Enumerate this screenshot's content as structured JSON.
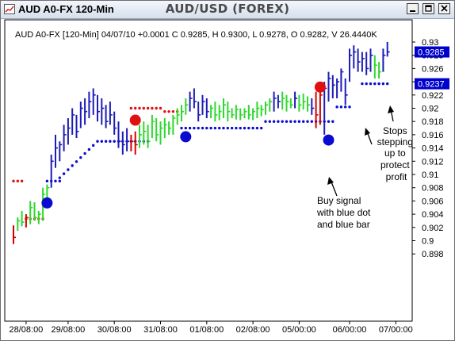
{
  "window": {
    "title": "AUD A0-FX 120-Min",
    "chart_title": "AUD/USD (FOREX)",
    "buttons": [
      "minimize-icon",
      "maximize-icon",
      "close-icon"
    ]
  },
  "info_line": "AUD A0-FX [120-Min] 04/07/10  +0.0001  C 0.9285, H 0.9300, L 0.9278, O 0.9282, V 26.4440K",
  "price_tags": [
    {
      "label": "0.9285",
      "value": 0.9285,
      "color": "#0000cc"
    },
    {
      "label": "0.9237",
      "value": 0.9237,
      "color": "#0000cc"
    }
  ],
  "annotations": {
    "buy_signal": "Buy signal\nwith blue dot\nand blue bar",
    "stops": "Stops\nstepping\nup to\nprotect\nprofit"
  },
  "colors": {
    "up": "#2dd82d",
    "down": "#1c1cb8",
    "sell": "#d40000",
    "stop_blue": "#0a0ad0",
    "stop_red": "#e01010"
  },
  "chart_data": {
    "type": "ohlc-bar",
    "title": "AUD/USD (FOREX)",
    "ylim": [
      0.8975,
      0.9325
    ],
    "y_ticks": [
      0.898,
      0.9,
      0.902,
      0.904,
      0.906,
      0.908,
      0.91,
      0.912,
      0.914,
      0.916,
      0.918,
      0.92,
      0.922,
      0.924,
      0.926,
      0.928,
      0.93
    ],
    "y_tick_labels": [
      "0.898",
      "0.9",
      "0.902",
      "0.904",
      "0.906",
      "0.908",
      "0.91",
      "0.912",
      "0.914",
      "0.916",
      "0.918",
      "0.92",
      "0.922",
      "0.924",
      "0.926",
      "0.928",
      "0.93"
    ],
    "x_labels": [
      {
        "bar": 3,
        "label": "28/08:00"
      },
      {
        "bar": 13,
        "label": "29/08:00"
      },
      {
        "bar": 24,
        "label": "30/08:00"
      },
      {
        "bar": 35,
        "label": "31/08:00"
      },
      {
        "bar": 46,
        "label": "01/08:00"
      },
      {
        "bar": 57,
        "label": "02/08:00"
      },
      {
        "bar": 68,
        "label": "05/00:00"
      },
      {
        "bar": 80,
        "label": "06/00:00"
      },
      {
        "bar": 91,
        "label": "07/00:00"
      }
    ],
    "bars": [
      {
        "h": 0.9023,
        "l": 0.8995,
        "c": 0.9005,
        "col": "red"
      },
      {
        "h": 0.9035,
        "l": 0.9015,
        "c": 0.903,
        "col": "green"
      },
      {
        "h": 0.9045,
        "l": 0.9022,
        "c": 0.9028,
        "col": "green"
      },
      {
        "h": 0.904,
        "l": 0.902,
        "c": 0.9035,
        "col": "red"
      },
      {
        "h": 0.906,
        "l": 0.9025,
        "c": 0.905,
        "col": "green"
      },
      {
        "h": 0.9058,
        "l": 0.903,
        "c": 0.9035,
        "col": "green"
      },
      {
        "h": 0.9045,
        "l": 0.9025,
        "c": 0.904,
        "col": "green"
      },
      {
        "h": 0.908,
        "l": 0.903,
        "c": 0.907,
        "col": "green"
      },
      {
        "h": 0.9085,
        "l": 0.9055,
        "c": 0.908,
        "col": "green"
      },
      {
        "h": 0.913,
        "l": 0.908,
        "c": 0.912,
        "col": "blue"
      },
      {
        "h": 0.916,
        "l": 0.911,
        "c": 0.914,
        "col": "blue"
      },
      {
        "h": 0.915,
        "l": 0.912,
        "c": 0.9145,
        "col": "blue"
      },
      {
        "h": 0.9175,
        "l": 0.9135,
        "c": 0.916,
        "col": "blue"
      },
      {
        "h": 0.9185,
        "l": 0.9145,
        "c": 0.917,
        "col": "blue"
      },
      {
        "h": 0.92,
        "l": 0.916,
        "c": 0.919,
        "col": "blue"
      },
      {
        "h": 0.919,
        "l": 0.9155,
        "c": 0.9165,
        "col": "blue"
      },
      {
        "h": 0.921,
        "l": 0.917,
        "c": 0.92,
        "col": "blue"
      },
      {
        "h": 0.9215,
        "l": 0.9175,
        "c": 0.9195,
        "col": "blue"
      },
      {
        "h": 0.9225,
        "l": 0.9185,
        "c": 0.921,
        "col": "blue"
      },
      {
        "h": 0.923,
        "l": 0.919,
        "c": 0.922,
        "col": "blue"
      },
      {
        "h": 0.922,
        "l": 0.918,
        "c": 0.9195,
        "col": "blue"
      },
      {
        "h": 0.9215,
        "l": 0.9175,
        "c": 0.92,
        "col": "blue"
      },
      {
        "h": 0.9205,
        "l": 0.917,
        "c": 0.918,
        "col": "blue"
      },
      {
        "h": 0.921,
        "l": 0.9175,
        "c": 0.919,
        "col": "blue"
      },
      {
        "h": 0.9195,
        "l": 0.916,
        "c": 0.917,
        "col": "blue"
      },
      {
        "h": 0.918,
        "l": 0.914,
        "c": 0.915,
        "col": "blue"
      },
      {
        "h": 0.9165,
        "l": 0.913,
        "c": 0.9145,
        "col": "blue"
      },
      {
        "h": 0.917,
        "l": 0.9135,
        "c": 0.915,
        "col": "blue"
      },
      {
        "h": 0.916,
        "l": 0.9135,
        "c": 0.915,
        "col": "red"
      },
      {
        "h": 0.9165,
        "l": 0.913,
        "c": 0.9145,
        "col": "red"
      },
      {
        "h": 0.9175,
        "l": 0.914,
        "c": 0.916,
        "col": "green"
      },
      {
        "h": 0.918,
        "l": 0.9145,
        "c": 0.9165,
        "col": "green"
      },
      {
        "h": 0.9175,
        "l": 0.914,
        "c": 0.915,
        "col": "green"
      },
      {
        "h": 0.919,
        "l": 0.9155,
        "c": 0.918,
        "col": "green"
      },
      {
        "h": 0.9185,
        "l": 0.915,
        "c": 0.916,
        "col": "green"
      },
      {
        "h": 0.918,
        "l": 0.9145,
        "c": 0.917,
        "col": "green"
      },
      {
        "h": 0.9185,
        "l": 0.9155,
        "c": 0.9175,
        "col": "green"
      },
      {
        "h": 0.918,
        "l": 0.916,
        "c": 0.917,
        "col": "green"
      },
      {
        "h": 0.919,
        "l": 0.916,
        "c": 0.9185,
        "col": "green"
      },
      {
        "h": 0.92,
        "l": 0.9175,
        "c": 0.919,
        "col": "green"
      },
      {
        "h": 0.9205,
        "l": 0.918,
        "c": 0.9195,
        "col": "green"
      },
      {
        "h": 0.9215,
        "l": 0.919,
        "c": 0.9205,
        "col": "green"
      },
      {
        "h": 0.9225,
        "l": 0.9195,
        "c": 0.9215,
        "col": "blue"
      },
      {
        "h": 0.923,
        "l": 0.92,
        "c": 0.921,
        "col": "blue"
      },
      {
        "h": 0.921,
        "l": 0.918,
        "c": 0.919,
        "col": "blue"
      },
      {
        "h": 0.922,
        "l": 0.919,
        "c": 0.921,
        "col": "blue"
      },
      {
        "h": 0.9215,
        "l": 0.9185,
        "c": 0.9195,
        "col": "blue"
      },
      {
        "h": 0.9205,
        "l": 0.9185,
        "c": 0.92,
        "col": "green"
      },
      {
        "h": 0.921,
        "l": 0.918,
        "c": 0.919,
        "col": "green"
      },
      {
        "h": 0.9205,
        "l": 0.9182,
        "c": 0.9195,
        "col": "green"
      },
      {
        "h": 0.9215,
        "l": 0.9185,
        "c": 0.9205,
        "col": "green"
      },
      {
        "h": 0.921,
        "l": 0.918,
        "c": 0.9195,
        "col": "green"
      },
      {
        "h": 0.92,
        "l": 0.9185,
        "c": 0.919,
        "col": "green"
      },
      {
        "h": 0.9205,
        "l": 0.9183,
        "c": 0.9198,
        "col": "green"
      },
      {
        "h": 0.92,
        "l": 0.9182,
        "c": 0.919,
        "col": "green"
      },
      {
        "h": 0.92,
        "l": 0.9185,
        "c": 0.9195,
        "col": "green"
      },
      {
        "h": 0.9205,
        "l": 0.9183,
        "c": 0.919,
        "col": "green"
      },
      {
        "h": 0.92,
        "l": 0.9182,
        "c": 0.9195,
        "col": "green"
      },
      {
        "h": 0.921,
        "l": 0.9185,
        "c": 0.92,
        "col": "green"
      },
      {
        "h": 0.9205,
        "l": 0.9188,
        "c": 0.9198,
        "col": "green"
      },
      {
        "h": 0.921,
        "l": 0.919,
        "c": 0.9205,
        "col": "green"
      },
      {
        "h": 0.9215,
        "l": 0.9195,
        "c": 0.921,
        "col": "green"
      },
      {
        "h": 0.9225,
        "l": 0.9195,
        "c": 0.9215,
        "col": "blue"
      },
      {
        "h": 0.922,
        "l": 0.92,
        "c": 0.921,
        "col": "blue"
      },
      {
        "h": 0.9225,
        "l": 0.9198,
        "c": 0.9215,
        "col": "green"
      },
      {
        "h": 0.922,
        "l": 0.9195,
        "c": 0.921,
        "col": "green"
      },
      {
        "h": 0.9215,
        "l": 0.92,
        "c": 0.9205,
        "col": "green"
      },
      {
        "h": 0.9225,
        "l": 0.92,
        "c": 0.9215,
        "col": "blue"
      },
      {
        "h": 0.922,
        "l": 0.9195,
        "c": 0.9205,
        "col": "green"
      },
      {
        "h": 0.9222,
        "l": 0.9198,
        "c": 0.921,
        "col": "green"
      },
      {
        "h": 0.9218,
        "l": 0.9195,
        "c": 0.9205,
        "col": "green"
      },
      {
        "h": 0.9215,
        "l": 0.919,
        "c": 0.92,
        "col": "blue"
      },
      {
        "h": 0.9225,
        "l": 0.917,
        "c": 0.919,
        "col": "red"
      },
      {
        "h": 0.923,
        "l": 0.9175,
        "c": 0.922,
        "col": "red"
      },
      {
        "h": 0.924,
        "l": 0.916,
        "c": 0.923,
        "col": "blue"
      },
      {
        "h": 0.9255,
        "l": 0.921,
        "c": 0.9245,
        "col": "blue"
      },
      {
        "h": 0.925,
        "l": 0.9215,
        "c": 0.9235,
        "col": "blue"
      },
      {
        "h": 0.9245,
        "l": 0.9215,
        "c": 0.924,
        "col": "blue"
      },
      {
        "h": 0.926,
        "l": 0.9225,
        "c": 0.9255,
        "col": "blue"
      },
      {
        "h": 0.9245,
        "l": 0.9205,
        "c": 0.922,
        "col": "blue"
      },
      {
        "h": 0.929,
        "l": 0.924,
        "c": 0.928,
        "col": "blue"
      },
      {
        "h": 0.9295,
        "l": 0.926,
        "c": 0.9285,
        "col": "blue"
      },
      {
        "h": 0.929,
        "l": 0.9255,
        "c": 0.927,
        "col": "blue"
      },
      {
        "h": 0.9285,
        "l": 0.9255,
        "c": 0.9275,
        "col": "blue"
      },
      {
        "h": 0.9285,
        "l": 0.925,
        "c": 0.926,
        "col": "blue"
      },
      {
        "h": 0.929,
        "l": 0.9255,
        "c": 0.928,
        "col": "blue"
      },
      {
        "h": 0.928,
        "l": 0.9245,
        "c": 0.9265,
        "col": "green"
      },
      {
        "h": 0.927,
        "l": 0.9245,
        "c": 0.9255,
        "col": "green"
      },
      {
        "h": 0.929,
        "l": 0.9255,
        "c": 0.928,
        "col": "blue"
      },
      {
        "h": 0.93,
        "l": 0.9278,
        "c": 0.9285,
        "col": "blue"
      }
    ],
    "stop_series": [
      {
        "color": "red",
        "value": 0.909,
        "from": 0,
        "to": 2
      },
      {
        "color": "red",
        "value": 0.9033,
        "from": 3,
        "to": 7
      },
      {
        "color": "blue",
        "value": 0.909,
        "from": 8,
        "to": 11
      },
      {
        "color": "blue",
        "ramp": [
          [
            11,
            0.9095
          ],
          [
            20,
            0.915
          ]
        ]
      },
      {
        "color": "blue",
        "value": 0.915,
        "from": 21,
        "to": 32
      },
      {
        "color": "red",
        "value": 0.92,
        "from": 28,
        "to": 35
      },
      {
        "color": "red",
        "value": 0.9195,
        "from": 36,
        "to": 39
      },
      {
        "color": "blue",
        "value": 0.917,
        "from": 40,
        "to": 59
      },
      {
        "color": "blue",
        "value": 0.918,
        "from": 60,
        "to": 76
      },
      {
        "color": "blue",
        "value": 0.9202,
        "from": 77,
        "to": 80
      },
      {
        "color": "blue",
        "value": 0.9237,
        "from": 83,
        "to": 89
      }
    ],
    "signal_dots": [
      {
        "bar": 8,
        "value": 0.9057,
        "color": "blue"
      },
      {
        "bar": 29,
        "value": 0.9182,
        "color": "red"
      },
      {
        "bar": 41,
        "value": 0.9157,
        "color": "blue"
      },
      {
        "bar": 73,
        "value": 0.9232,
        "color": "red"
      },
      {
        "bar": 75,
        "value": 0.9152,
        "color": "blue"
      }
    ]
  }
}
